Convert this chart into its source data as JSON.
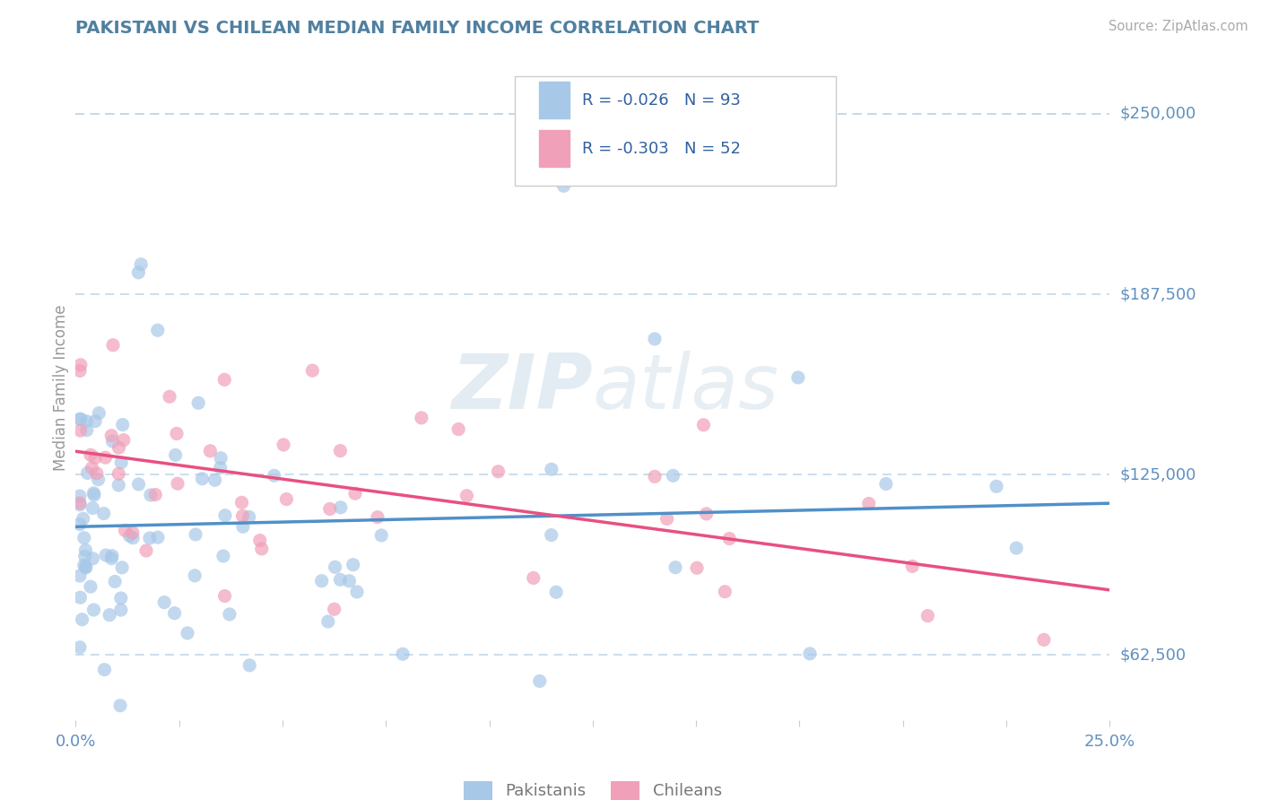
{
  "title": "PAKISTANI VS CHILEAN MEDIAN FAMILY INCOME CORRELATION CHART",
  "source": "Source: ZipAtlas.com",
  "ylabel": "Median Family Income",
  "xlim": [
    0.0,
    0.25
  ],
  "ylim": [
    40000,
    270000
  ],
  "plot_ylim": [
    40000,
    270000
  ],
  "ytick_vals": [
    62500,
    125000,
    187500,
    250000
  ],
  "ytick_labels": [
    "$62,500",
    "$125,000",
    "$187,500",
    "$250,000"
  ],
  "xticks": [
    0.0,
    0.025,
    0.05,
    0.075,
    0.1,
    0.125,
    0.15,
    0.175,
    0.2,
    0.225,
    0.25
  ],
  "xtick_labels": [
    "0.0%",
    "",
    "",
    "",
    "",
    "",
    "",
    "",
    "",
    "",
    "25.0%"
  ],
  "pakistani_color": "#a8c8e8",
  "chilean_color": "#f0a0b8",
  "pakistani_line_color": "#5090c8",
  "chilean_line_color": "#e85080",
  "grid_color": "#c0d8ec",
  "title_color": "#5080a0",
  "axis_label_color": "#999999",
  "tick_label_color": "#6090c0",
  "legend_text_color": "#3060a0",
  "watermark_color": "#d8e8f0",
  "watermark": "ZIPatlas",
  "r_pakistani": -0.026,
  "n_pakistani": 93,
  "r_chilean": -0.303,
  "n_chilean": 52,
  "pk_seed": 42,
  "ch_seed": 7
}
